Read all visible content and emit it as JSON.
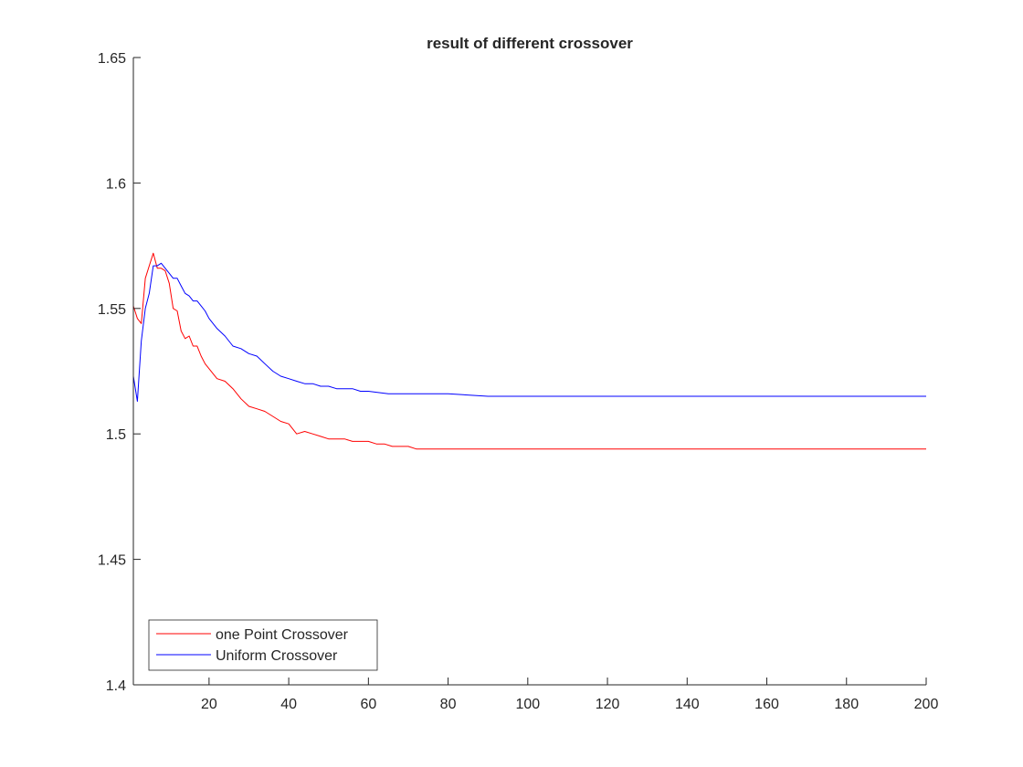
{
  "chart_data": {
    "type": "line",
    "title": "result of different crossover",
    "xlabel": "",
    "ylabel": "",
    "xlim": [
      1,
      200
    ],
    "ylim": [
      1.4,
      1.65
    ],
    "xticks": [
      20,
      40,
      60,
      80,
      100,
      120,
      140,
      160,
      180,
      200
    ],
    "xtick_labels": [
      "20",
      "40",
      "60",
      "80",
      "100",
      "120",
      "140",
      "160",
      "180",
      "200"
    ],
    "yticks": [
      1.4,
      1.45,
      1.5,
      1.55,
      1.6,
      1.65
    ],
    "ytick_labels": [
      "1.4",
      "1.45",
      "1.5",
      "1.55",
      "1.6",
      "1.65"
    ],
    "grid": false,
    "legend_position": "bottom-left",
    "series": [
      {
        "name": "one Point Crossover",
        "color": "#ff0000",
        "x": [
          1,
          2,
          3,
          4,
          5,
          6,
          7,
          8,
          9,
          10,
          11,
          12,
          13,
          14,
          15,
          16,
          17,
          18,
          19,
          20,
          22,
          24,
          26,
          28,
          30,
          32,
          34,
          36,
          38,
          40,
          42,
          44,
          46,
          48,
          50,
          52,
          54,
          56,
          58,
          60,
          62,
          64,
          66,
          68,
          70,
          72,
          75,
          80,
          90,
          100,
          120,
          140,
          160,
          180,
          200
        ],
        "y": [
          1.551,
          1.546,
          1.544,
          1.562,
          1.567,
          1.572,
          1.566,
          1.566,
          1.565,
          1.56,
          1.55,
          1.549,
          1.541,
          1.538,
          1.539,
          1.535,
          1.535,
          1.531,
          1.528,
          1.526,
          1.522,
          1.521,
          1.518,
          1.514,
          1.511,
          1.51,
          1.509,
          1.507,
          1.505,
          1.504,
          1.5,
          1.501,
          1.5,
          1.499,
          1.498,
          1.498,
          1.498,
          1.497,
          1.497,
          1.497,
          1.496,
          1.496,
          1.495,
          1.495,
          1.495,
          1.494,
          1.494,
          1.494,
          1.494,
          1.494,
          1.494,
          1.494,
          1.494,
          1.494,
          1.494
        ]
      },
      {
        "name": "Uniform Crossover",
        "color": "#0000ff",
        "x": [
          1,
          2,
          3,
          4,
          5,
          6,
          7,
          8,
          9,
          10,
          11,
          12,
          13,
          14,
          15,
          16,
          17,
          18,
          19,
          20,
          22,
          24,
          26,
          28,
          30,
          32,
          34,
          36,
          38,
          40,
          42,
          44,
          46,
          48,
          50,
          52,
          54,
          56,
          58,
          60,
          65,
          70,
          80,
          90,
          100,
          110,
          120,
          140,
          160,
          180,
          200
        ],
        "y": [
          1.523,
          1.513,
          1.537,
          1.55,
          1.556,
          1.567,
          1.567,
          1.568,
          1.566,
          1.564,
          1.562,
          1.562,
          1.559,
          1.556,
          1.555,
          1.553,
          1.553,
          1.551,
          1.549,
          1.546,
          1.542,
          1.539,
          1.535,
          1.534,
          1.532,
          1.531,
          1.528,
          1.525,
          1.523,
          1.522,
          1.521,
          1.52,
          1.52,
          1.519,
          1.519,
          1.518,
          1.518,
          1.518,
          1.517,
          1.517,
          1.516,
          1.516,
          1.516,
          1.515,
          1.515,
          1.515,
          1.515,
          1.515,
          1.515,
          1.515,
          1.515
        ]
      }
    ]
  }
}
